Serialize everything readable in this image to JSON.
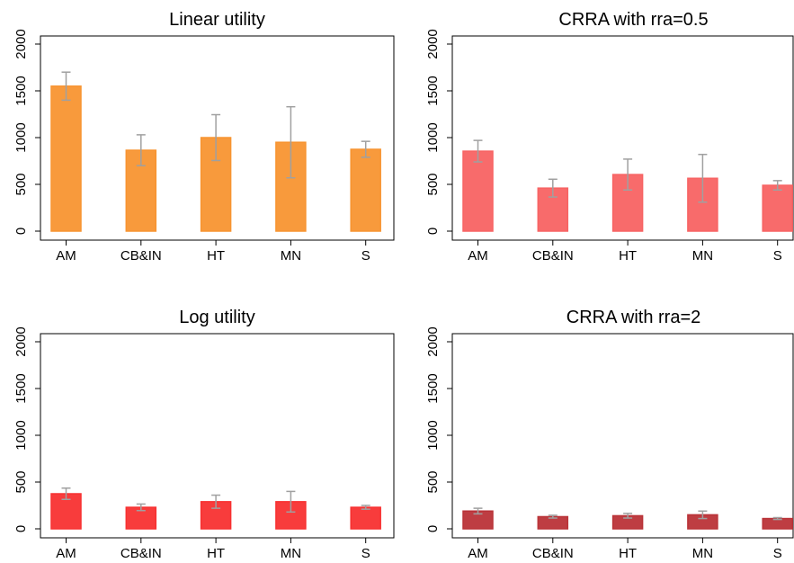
{
  "chart_data": [
    {
      "type": "bar",
      "title": "Linear utility",
      "categories": [
        "AM",
        "CB&IN",
        "HT",
        "MN",
        "S"
      ],
      "values": [
        1550,
        865,
        1000,
        950,
        875
      ],
      "errors": [
        150,
        165,
        245,
        380,
        85
      ],
      "color": "#ff9933",
      "ylim": [
        0,
        2000
      ],
      "yticks": [
        0,
        500,
        1000,
        1500,
        2000
      ]
    },
    {
      "type": "bar",
      "title": "CRRA with rra=0.5",
      "categories": [
        "AM",
        "CB&IN",
        "HT",
        "MN",
        "S"
      ],
      "values": [
        855,
        460,
        605,
        565,
        490
      ],
      "errors": [
        115,
        95,
        165,
        255,
        50
      ],
      "color": "#ff6666",
      "ylim": [
        0,
        2000
      ],
      "yticks": [
        0,
        500,
        1000,
        1500,
        2000
      ]
    },
    {
      "type": "bar",
      "title": "Log utility",
      "categories": [
        "AM",
        "CB&IN",
        "HT",
        "MN",
        "S"
      ],
      "values": [
        375,
        230,
        290,
        290,
        230
      ],
      "errors": [
        60,
        35,
        70,
        110,
        20
      ],
      "color": "#ff3333",
      "ylim": [
        0,
        2000
      ],
      "yticks": [
        0,
        500,
        1000,
        1500,
        2000
      ]
    },
    {
      "type": "bar",
      "title": "CRRA with rra=2",
      "categories": [
        "AM",
        "CB&IN",
        "HT",
        "MN",
        "S"
      ],
      "values": [
        190,
        130,
        140,
        150,
        110
      ],
      "errors": [
        30,
        15,
        25,
        40,
        10
      ],
      "color": "#c0353a",
      "ylim": [
        0,
        2000
      ],
      "yticks": [
        0,
        500,
        1000,
        1500,
        2000
      ]
    }
  ]
}
